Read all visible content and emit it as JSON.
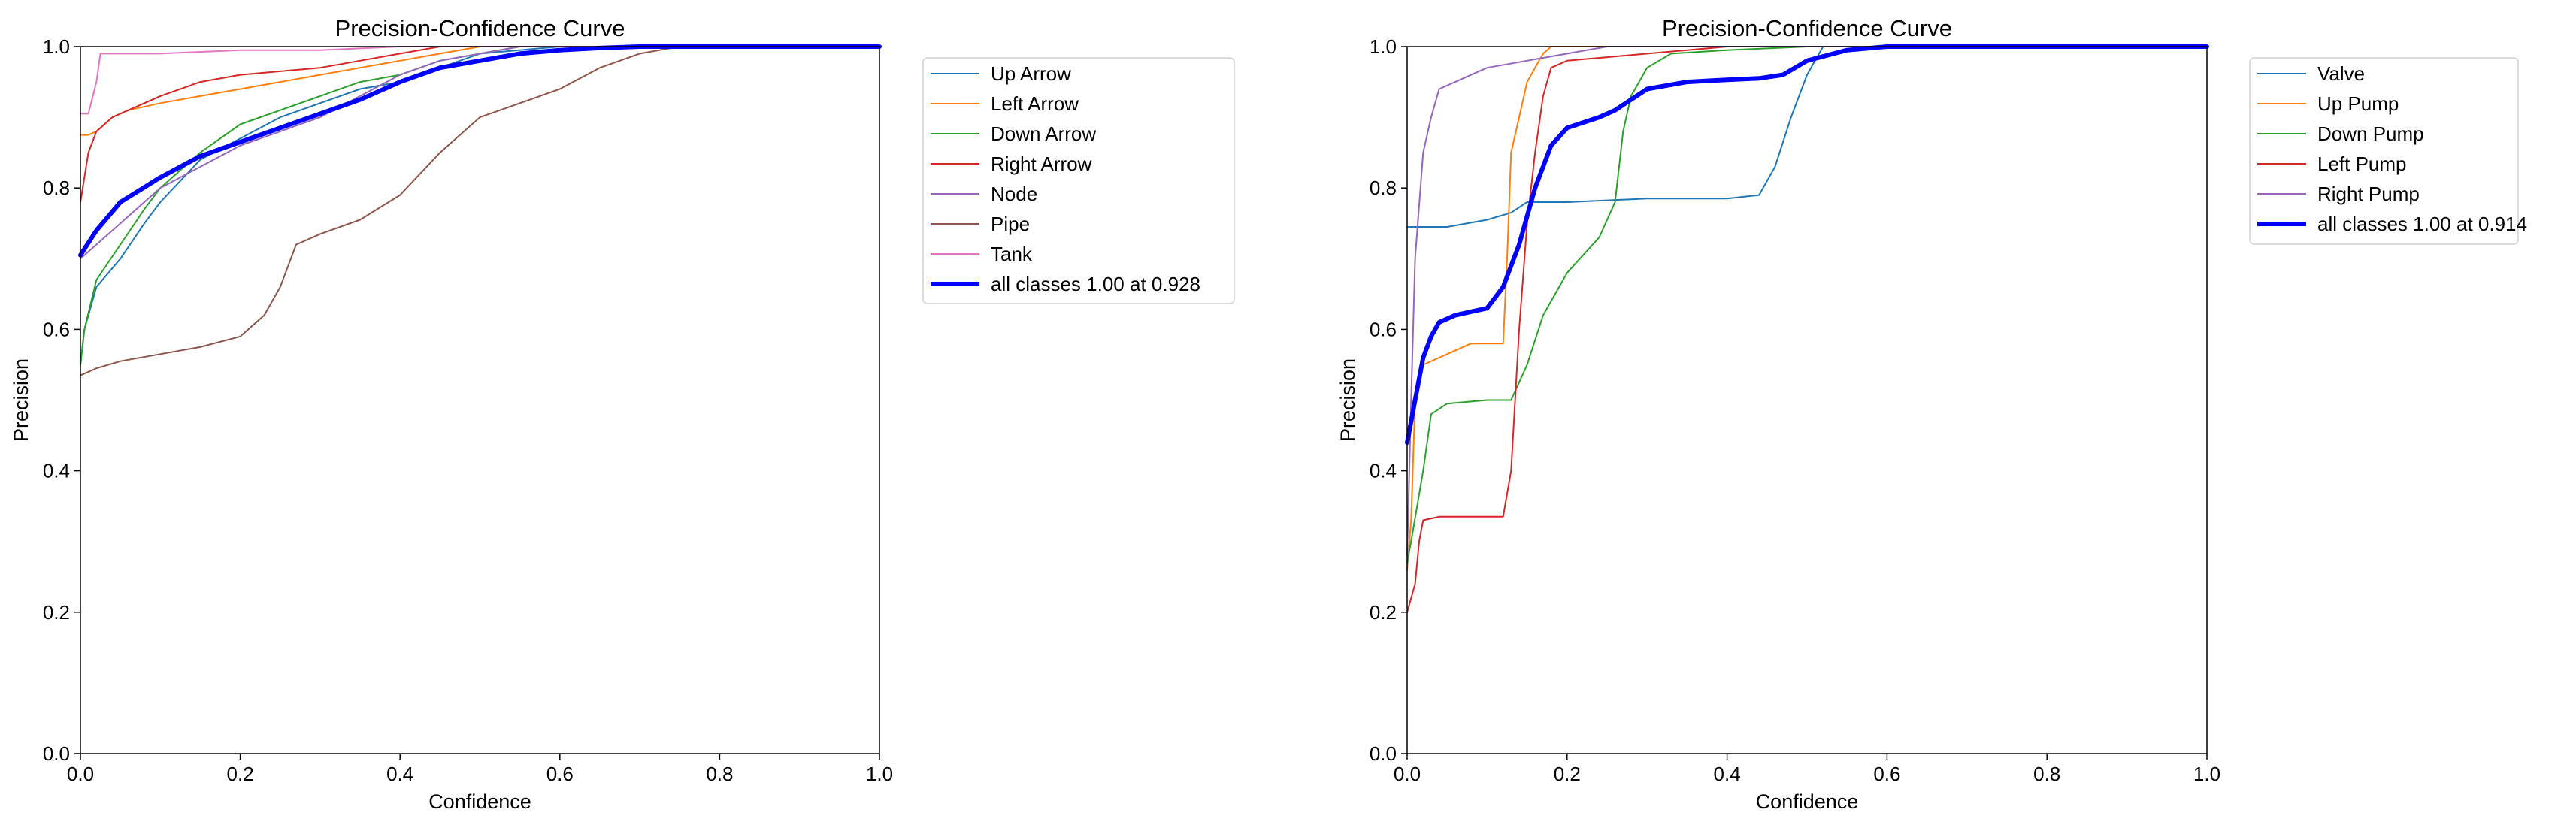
{
  "chart_data": [
    {
      "type": "line",
      "title": "Precision-Confidence Curve",
      "xlabel": "Confidence",
      "ylabel": "Precision",
      "xlim": [
        0,
        1
      ],
      "ylim": [
        0,
        1
      ],
      "xticks": [
        "0.0",
        "0.2",
        "0.4",
        "0.6",
        "0.8",
        "1.0"
      ],
      "yticks": [
        "0.0",
        "0.2",
        "0.4",
        "0.6",
        "0.8",
        "1.0"
      ],
      "grid": false,
      "legend_position": "upper-right-outside",
      "series": [
        {
          "name": "Up Arrow",
          "color": "#1f77b4",
          "width": 2,
          "x": [
            0,
            0.005,
            0.02,
            0.05,
            0.08,
            0.1,
            0.15,
            0.2,
            0.25,
            0.3,
            0.35,
            0.4,
            0.45,
            0.5,
            0.6,
            0.7,
            0.8,
            1.0
          ],
          "y": [
            0.55,
            0.6,
            0.66,
            0.7,
            0.75,
            0.78,
            0.84,
            0.87,
            0.9,
            0.92,
            0.94,
            0.95,
            0.97,
            0.99,
            1.0,
            1.0,
            1.0,
            1.0
          ]
        },
        {
          "name": "Left Arrow",
          "color": "#ff7f0e",
          "width": 2,
          "x": [
            0,
            0.01,
            0.02,
            0.04,
            0.06,
            0.1,
            0.15,
            0.2,
            0.25,
            0.3,
            0.35,
            0.4,
            0.45,
            0.5,
            1.0
          ],
          "y": [
            0.875,
            0.875,
            0.88,
            0.9,
            0.91,
            0.92,
            0.93,
            0.94,
            0.95,
            0.96,
            0.97,
            0.98,
            0.99,
            1.0,
            1.0
          ]
        },
        {
          "name": "Down Arrow",
          "color": "#2ca02c",
          "width": 2,
          "x": [
            0,
            0.005,
            0.02,
            0.05,
            0.08,
            0.1,
            0.15,
            0.2,
            0.25,
            0.3,
            0.35,
            0.4,
            0.45,
            0.5,
            0.55,
            1.0
          ],
          "y": [
            0.55,
            0.6,
            0.67,
            0.72,
            0.77,
            0.8,
            0.85,
            0.89,
            0.91,
            0.93,
            0.95,
            0.96,
            0.98,
            0.99,
            1.0,
            1.0
          ]
        },
        {
          "name": "Right Arrow",
          "color": "#d62728",
          "width": 2,
          "x": [
            0,
            0.01,
            0.02,
            0.04,
            0.06,
            0.1,
            0.15,
            0.2,
            0.25,
            0.3,
            0.35,
            0.4,
            0.45,
            0.5,
            1.0
          ],
          "y": [
            0.78,
            0.85,
            0.88,
            0.9,
            0.91,
            0.93,
            0.95,
            0.96,
            0.965,
            0.97,
            0.98,
            0.99,
            1.0,
            1.0,
            1.0
          ]
        },
        {
          "name": "Node",
          "color": "#9467bd",
          "width": 2,
          "x": [
            0,
            0.02,
            0.05,
            0.08,
            0.1,
            0.15,
            0.2,
            0.25,
            0.3,
            0.35,
            0.4,
            0.45,
            0.5,
            0.55,
            1.0
          ],
          "y": [
            0.7,
            0.72,
            0.75,
            0.78,
            0.8,
            0.83,
            0.86,
            0.88,
            0.9,
            0.93,
            0.96,
            0.98,
            0.99,
            1.0,
            1.0
          ]
        },
        {
          "name": "Pipe",
          "color": "#8c564b",
          "width": 2,
          "x": [
            0,
            0.02,
            0.05,
            0.1,
            0.15,
            0.2,
            0.23,
            0.25,
            0.27,
            0.3,
            0.35,
            0.4,
            0.45,
            0.5,
            0.55,
            0.6,
            0.65,
            0.7,
            0.75,
            0.8,
            1.0
          ],
          "y": [
            0.535,
            0.545,
            0.555,
            0.565,
            0.575,
            0.59,
            0.62,
            0.66,
            0.72,
            0.735,
            0.755,
            0.79,
            0.85,
            0.9,
            0.92,
            0.94,
            0.97,
            0.99,
            1.0,
            1.0,
            1.0
          ]
        },
        {
          "name": "Tank",
          "color": "#e377c2",
          "width": 2,
          "x": [
            0,
            0.01,
            0.02,
            0.025,
            0.03,
            0.05,
            0.1,
            0.2,
            0.3,
            0.4,
            0.5,
            1.0
          ],
          "y": [
            0.905,
            0.905,
            0.95,
            0.99,
            0.99,
            0.99,
            0.99,
            0.995,
            0.995,
            1.0,
            1.0,
            1.0
          ]
        },
        {
          "name": "all classes 1.00 at 0.928",
          "color": "#0000ff",
          "width": 6,
          "x": [
            0,
            0.02,
            0.05,
            0.1,
            0.15,
            0.2,
            0.25,
            0.3,
            0.35,
            0.4,
            0.45,
            0.5,
            0.55,
            0.6,
            0.65,
            0.7,
            0.75,
            0.8,
            1.0
          ],
          "y": [
            0.705,
            0.74,
            0.78,
            0.815,
            0.845,
            0.865,
            0.885,
            0.905,
            0.925,
            0.95,
            0.97,
            0.98,
            0.99,
            0.995,
            0.998,
            1.0,
            1.0,
            1.0,
            1.0
          ]
        }
      ]
    },
    {
      "type": "line",
      "title": "Precision-Confidence Curve",
      "xlabel": "Confidence",
      "ylabel": "Precision",
      "xlim": [
        0,
        1
      ],
      "ylim": [
        0,
        1
      ],
      "xticks": [
        "0.0",
        "0.2",
        "0.4",
        "0.6",
        "0.8",
        "1.0"
      ],
      "yticks": [
        "0.0",
        "0.2",
        "0.4",
        "0.6",
        "0.8",
        "1.0"
      ],
      "grid": false,
      "legend_position": "upper-right-outside",
      "series": [
        {
          "name": "Valve",
          "color": "#1f77b4",
          "width": 2,
          "x": [
            0,
            0.005,
            0.05,
            0.1,
            0.13,
            0.15,
            0.2,
            0.3,
            0.4,
            0.44,
            0.46,
            0.48,
            0.5,
            0.52,
            1.0
          ],
          "y": [
            0.745,
            0.745,
            0.745,
            0.755,
            0.765,
            0.78,
            0.78,
            0.785,
            0.785,
            0.79,
            0.83,
            0.9,
            0.96,
            1.0,
            1.0
          ]
        },
        {
          "name": "Up Pump",
          "color": "#ff7f0e",
          "width": 2,
          "x": [
            0,
            0.005,
            0.01,
            0.02,
            0.04,
            0.06,
            0.08,
            0.12,
            0.125,
            0.13,
            0.14,
            0.15,
            0.16,
            0.17,
            0.18,
            0.2,
            1.0
          ],
          "y": [
            0.26,
            0.33,
            0.5,
            0.55,
            0.56,
            0.57,
            0.58,
            0.58,
            0.7,
            0.85,
            0.9,
            0.95,
            0.97,
            0.99,
            1.0,
            1.0,
            1.0
          ]
        },
        {
          "name": "Down Pump",
          "color": "#2ca02c",
          "width": 2,
          "x": [
            0,
            0.005,
            0.02,
            0.03,
            0.05,
            0.1,
            0.13,
            0.15,
            0.17,
            0.2,
            0.24,
            0.26,
            0.27,
            0.28,
            0.3,
            0.33,
            0.4,
            0.5,
            1.0
          ],
          "y": [
            0.27,
            0.3,
            0.4,
            0.48,
            0.495,
            0.5,
            0.5,
            0.55,
            0.62,
            0.68,
            0.73,
            0.78,
            0.88,
            0.93,
            0.97,
            0.99,
            0.995,
            1.0,
            1.0
          ]
        },
        {
          "name": "Left Pump",
          "color": "#d62728",
          "width": 2,
          "x": [
            0,
            0.005,
            0.01,
            0.015,
            0.02,
            0.04,
            0.08,
            0.12,
            0.13,
            0.14,
            0.15,
            0.16,
            0.17,
            0.18,
            0.2,
            0.25,
            0.3,
            0.35,
            0.4,
            1.0
          ],
          "y": [
            0.2,
            0.22,
            0.24,
            0.3,
            0.33,
            0.335,
            0.335,
            0.335,
            0.4,
            0.6,
            0.75,
            0.85,
            0.93,
            0.97,
            0.98,
            0.985,
            0.99,
            0.995,
            1.0,
            1.0
          ]
        },
        {
          "name": "Right Pump",
          "color": "#9467bd",
          "width": 2,
          "x": [
            0,
            0.005,
            0.01,
            0.02,
            0.03,
            0.04,
            0.06,
            0.1,
            0.15,
            0.2,
            0.25,
            0.3,
            1.0
          ],
          "y": [
            0.28,
            0.5,
            0.7,
            0.85,
            0.9,
            0.94,
            0.95,
            0.97,
            0.98,
            0.99,
            1.0,
            1.0,
            1.0
          ]
        },
        {
          "name": "all classes 1.00 at 0.914",
          "color": "#0000ff",
          "width": 6,
          "x": [
            0,
            0.01,
            0.02,
            0.03,
            0.04,
            0.06,
            0.1,
            0.12,
            0.14,
            0.16,
            0.18,
            0.2,
            0.24,
            0.26,
            0.3,
            0.35,
            0.4,
            0.44,
            0.47,
            0.5,
            0.55,
            0.6,
            1.0
          ],
          "y": [
            0.44,
            0.5,
            0.56,
            0.59,
            0.61,
            0.62,
            0.63,
            0.66,
            0.72,
            0.8,
            0.86,
            0.885,
            0.9,
            0.91,
            0.94,
            0.95,
            0.953,
            0.955,
            0.96,
            0.98,
            0.995,
            1.0,
            1.0
          ]
        }
      ]
    }
  ]
}
